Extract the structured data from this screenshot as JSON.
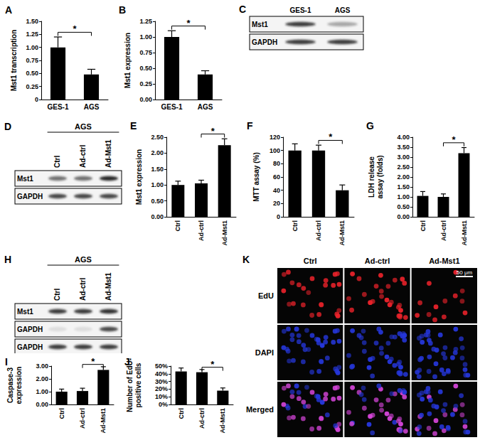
{
  "chart_data": [
    {
      "type": "bar",
      "title": "A",
      "y_label": "Mst1 transcription",
      "categories": [
        "GES-1",
        "AGS"
      ],
      "values": [
        1.0,
        0.48
      ],
      "errors": [
        0.2,
        0.1
      ],
      "color": "#000000",
      "ylim": [
        0,
        1.5
      ],
      "yticks": [
        0,
        0.25,
        {
          "value": 0.5,
          "label": "0.50"
        },
        0.75,
        {
          "value": 1,
          "label": "1.00"
        },
        1.25,
        {
          "value": 1.5,
          "label": "1.50"
        }
      ],
      "annotations": [
        {
          "between": [
            "GES-1",
            "AGS"
          ],
          "text": "*"
        }
      ],
      "grid": false
    },
    {
      "type": "bar",
      "title": "B",
      "y_label": "Mst1 expression",
      "categories": [
        "GES-1",
        "AGS"
      ],
      "values": [
        1.0,
        0.4
      ],
      "errors": [
        0.1,
        0.06
      ],
      "color": "#000000",
      "ylim": [
        0,
        1.25
      ],
      "yticks": [
        {
          "value": 0,
          "label": "0.00"
        },
        0.25,
        {
          "value": 0.5,
          "label": "0.50"
        },
        0.75,
        {
          "value": 1,
          "label": "1.00"
        },
        1.25
      ],
      "annotations": [
        {
          "between": [
            "GES-1",
            "AGS"
          ],
          "text": "*"
        }
      ],
      "grid": false
    },
    {
      "type": "bar",
      "title": "E",
      "y_label": "Mst1 expression",
      "categories": [
        "Ctrl",
        "Ad-ctrl",
        "Ad-Mst1"
      ],
      "values": [
        1.0,
        1.05,
        2.25
      ],
      "errors": [
        0.12,
        0.1,
        0.2
      ],
      "color": "#000000",
      "ylim": [
        0,
        2.5
      ],
      "yticks": [
        {
          "value": 0,
          "label": "0.00"
        },
        {
          "value": 0.5,
          "label": "0.50"
        },
        {
          "value": 1,
          "label": "1.00"
        },
        {
          "value": 1.5,
          "label": "1.50"
        },
        {
          "value": 2,
          "label": "2.00"
        },
        {
          "value": 2.5,
          "label": "2.50"
        }
      ],
      "annotations": [
        {
          "between": [
            "Ad-ctrl",
            "Ad-Mst1"
          ],
          "text": "*"
        }
      ],
      "grid": false
    },
    {
      "type": "bar",
      "title": "F",
      "y_label": "MTT assay (%)",
      "categories": [
        "Ctrl",
        "Ad-ctrl",
        "Ad-Mst1"
      ],
      "values": [
        100,
        100,
        40
      ],
      "errors": [
        10,
        8,
        8
      ],
      "color": "#000000",
      "ylim": [
        0,
        120
      ],
      "yticks": [
        0,
        20,
        40,
        60,
        80,
        100,
        120
      ],
      "annotations": [
        {
          "between": [
            "Ad-ctrl",
            "Ad-Mst1"
          ],
          "text": "*"
        }
      ],
      "grid": false
    },
    {
      "type": "bar",
      "title": "G",
      "y_label": "LDH release assay (folds)",
      "categories": [
        "Ctrl",
        "Ad-ctrl",
        "Ad-Mst1"
      ],
      "values": [
        1.05,
        1.0,
        3.2
      ],
      "errors": [
        0.22,
        0.15,
        0.28
      ],
      "color": "#000000",
      "ylim": [
        0,
        4
      ],
      "yticks": [
        {
          "value": 0,
          "label": "0.00"
        },
        {
          "value": 0.5,
          "label": "0.50"
        },
        {
          "value": 1,
          "label": "1.00"
        },
        {
          "value": 1.5,
          "label": "1.50"
        },
        {
          "value": 2,
          "label": "2.00"
        },
        {
          "value": 2.5,
          "label": "2.50"
        },
        {
          "value": 3,
          "label": "3.00"
        },
        {
          "value": 3.5,
          "label": "3.50"
        },
        {
          "value": 4,
          "label": "4.00"
        }
      ],
      "annotations": [
        {
          "between": [
            "Ad-ctrl",
            "Ad-Mst1"
          ],
          "text": "*"
        }
      ],
      "grid": false
    },
    {
      "type": "bar",
      "title": "I",
      "y_label": "Caspase-3 expression",
      "categories": [
        "Ctrl",
        "Ad-ctrl",
        "Ad-Mst1"
      ],
      "values": [
        1.0,
        1.05,
        2.7
      ],
      "errors": [
        0.2,
        0.22,
        0.25
      ],
      "color": "#000000",
      "ylim": [
        0,
        3
      ],
      "yticks": [
        {
          "value": 0,
          "label": "0.00"
        },
        {
          "value": 1,
          "label": "1.00"
        },
        {
          "value": 2,
          "label": "2.00"
        },
        {
          "value": 3,
          "label": "3.00"
        }
      ],
      "annotations": [
        {
          "between": [
            "Ad-ctrl",
            "Ad-Mst1"
          ],
          "text": "*"
        }
      ],
      "grid": false
    },
    {
      "type": "bar",
      "title": "J",
      "y_label": "Number of EdU-positive cells",
      "categories": [
        "Ctrl",
        "Ad-ctrl",
        "Ad-Mst1"
      ],
      "values": [
        43,
        42,
        18
      ],
      "errors": [
        4.5,
        3.5,
        3.5
      ],
      "color": "#000000",
      "ylim": [
        0,
        50
      ],
      "yticks": [
        {
          "value": 0,
          "label": "0%"
        },
        {
          "value": 10,
          "label": "10%"
        },
        {
          "value": 20,
          "label": "20%"
        },
        {
          "value": 30,
          "label": "30%"
        },
        {
          "value": 40,
          "label": "40%"
        },
        {
          "value": 50,
          "label": "50%"
        }
      ],
      "annotations": [
        {
          "between": [
            "Ad-ctrl",
            "Ad-Mst1"
          ],
          "text": "*"
        }
      ],
      "grid": false
    }
  ],
  "blots": [
    {
      "panel": "C",
      "lanes": [
        "GES-1",
        "AGS"
      ],
      "rows": [
        "Mst1",
        "GAPDH"
      ]
    },
    {
      "panel": "D",
      "header": "AGS",
      "lanes": [
        "Ctrl",
        "Ad-ctrl",
        "Ad-Mst1"
      ],
      "rows": [
        "Mst1",
        "GAPDH"
      ]
    },
    {
      "panel": "H",
      "header": "AGS",
      "lanes": [
        "Ctrl",
        "Ad-ctrl",
        "Ad-Mst1"
      ],
      "rows": [
        "Mst1",
        "GAPDH",
        "GAPDH"
      ]
    }
  ],
  "micrographs": {
    "panel": "K",
    "columns": [
      "Ctrl",
      "Ad-ctrl",
      "Ad-Mst1"
    ],
    "rows": [
      "EdU",
      "DAPI",
      "Merged"
    ],
    "scale_bar": "50 μm"
  }
}
